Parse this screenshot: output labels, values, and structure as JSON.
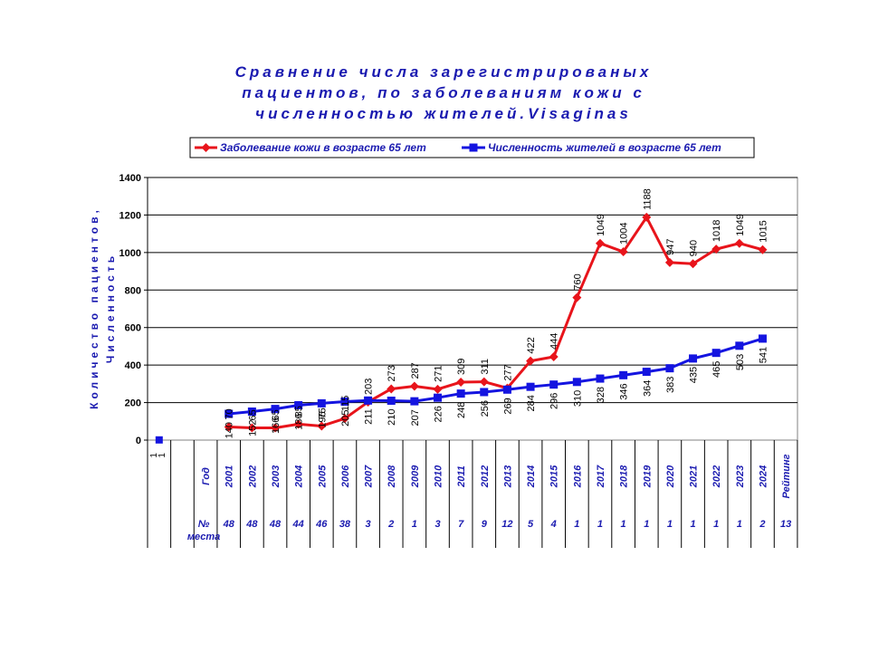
{
  "chart_data": {
    "type": "line",
    "title_lines": [
      "Сравнение числа зарегистрированых",
      "пациентов, по заболеваниям кожи с",
      "численностью жителей.Visaginas"
    ],
    "ylabel_lines": [
      "Количество пациентов,",
      "Численность"
    ],
    "ylim": [
      0,
      1400
    ],
    "yticks": [
      "0",
      "200",
      "400",
      "600",
      "800",
      "1000",
      "1200",
      "1400"
    ],
    "grid": true,
    "legend_position": "top",
    "extra_point": {
      "value": 1,
      "labels": [
        "1",
        "1"
      ]
    },
    "row_header_year": "Год",
    "row_header_place": "№ места",
    "rating_label": "Рейтинг",
    "rating_value": "13",
    "years": [
      "2001",
      "2002",
      "2003",
      "2004",
      "2005",
      "2006",
      "2007",
      "2008",
      "2009",
      "2010",
      "2011",
      "2012",
      "2013",
      "2014",
      "2015",
      "2016",
      "2017",
      "2018",
      "2019",
      "2020",
      "2021",
      "2022",
      "2023",
      "2024"
    ],
    "places": [
      "48",
      "48",
      "48",
      "44",
      "46",
      "38",
      "3",
      "2",
      "1",
      "3",
      "7",
      "9",
      "12",
      "5",
      "4",
      "1",
      "1",
      "1",
      "1",
      "1",
      "1",
      "1",
      "1",
      "2"
    ],
    "series": [
      {
        "name": "Заболевание кожи в возрасте 65 лет",
        "color": "#e8141b",
        "marker": "diamond",
        "values": [
          70,
          65,
          65,
          85,
          75,
          115,
          203,
          273,
          287,
          271,
          309,
          311,
          277,
          422,
          444,
          760,
          1049,
          1004,
          1188,
          947,
          940,
          1018,
          1049,
          1015
        ],
        "labels": [
          "70",
          "65",
          "65",
          "85",
          "75",
          "115",
          "203",
          "273",
          "287",
          "271",
          "309",
          "311",
          "277",
          "422",
          "444",
          "760",
          "1049",
          "1004",
          "1188",
          "947",
          "940",
          "1018",
          "1049",
          "1015"
        ]
      },
      {
        "name": "Численность жителей в возрасте 65 лет",
        "color": "#1414e0",
        "marker": "square",
        "values": [
          140,
          152,
          166,
          186,
          196,
          205,
          211,
          210,
          207,
          226,
          248,
          256,
          269,
          284,
          296,
          310,
          328,
          346,
          364,
          383,
          435,
          465,
          503,
          541
        ],
        "labels": [
          "140",
          "152",
          "166",
          "186",
          "196",
          "205",
          "211",
          "210",
          "207",
          "226",
          "248",
          "256",
          "269",
          "284",
          "296",
          "310",
          "328",
          "346",
          "364",
          "383",
          "435",
          "465",
          "503",
          "541"
        ]
      }
    ]
  }
}
